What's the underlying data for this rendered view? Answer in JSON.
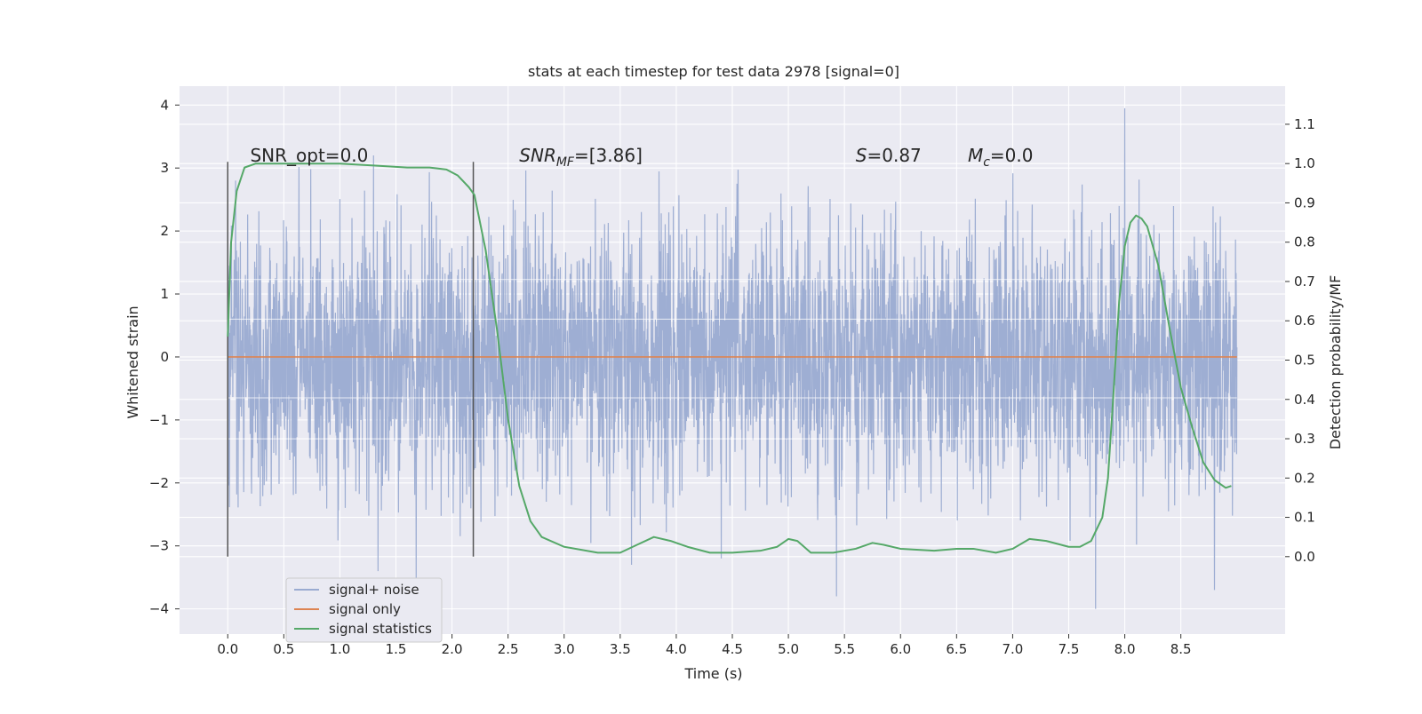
{
  "chart_data": {
    "type": "line",
    "title": "stats at each timestep for test data 2978 [signal=0]",
    "xlabel": "Time (s)",
    "ylabel": "Whitened strain",
    "y2label": "Detection probability/MF",
    "xlim": [
      -0.43,
      9.43
    ],
    "ylim": [
      -4.4,
      4.3
    ],
    "y2lim": [
      -0.197,
      1.197
    ],
    "xticks": [
      "0.0",
      "0.5",
      "1.0",
      "1.5",
      "2.0",
      "2.5",
      "3.0",
      "3.5",
      "4.0",
      "4.5",
      "5.0",
      "5.5",
      "6.0",
      "6.5",
      "7.0",
      "7.5",
      "8.0",
      "8.5"
    ],
    "yticks": [
      "4",
      "3",
      "2",
      "1",
      "0",
      "−1",
      "−2",
      "−3",
      "−4"
    ],
    "y2ticks": [
      "1.1",
      "1.0",
      "0.9",
      "0.8",
      "0.7",
      "0.6",
      "0.5",
      "0.4",
      "0.3",
      "0.2",
      "0.1",
      "0.0"
    ],
    "grid": true,
    "legend_position": "lower-left",
    "colors": {
      "background": "#eaeaf2",
      "grid": "#ffffff",
      "noise": "#9aabd1",
      "signal_only": "#dd8452",
      "statistics": "#55a868",
      "markers": "#555555"
    },
    "vertical_markers": [
      0.0,
      2.19
    ],
    "annotations": [
      {
        "text": "SNR_opt=0.0",
        "x": 0.2,
        "y2": 1.0
      },
      {
        "text": "SNR_MF=[3.86]",
        "x": 2.6,
        "y2": 1.0
      },
      {
        "text": "S=0.87",
        "x": 5.6,
        "y2": 1.0
      },
      {
        "text": "M_c=0.0",
        "x": 6.6,
        "y2": 1.0
      }
    ],
    "series": [
      {
        "name": "signal+ noise",
        "axis": "left",
        "style": "dense-noise",
        "x_range": [
          0.0,
          9.0
        ],
        "envelope_typical": [
          -1.3,
          1.3
        ],
        "extremes": [
          {
            "x": 0.07,
            "y": 2.8
          },
          {
            "x": 1.3,
            "y": 3.2
          },
          {
            "x": 1.34,
            "y": -3.4
          },
          {
            "x": 1.68,
            "y": -3.55
          },
          {
            "x": 3.6,
            "y": -3.3
          },
          {
            "x": 4.4,
            "y": -3.2
          },
          {
            "x": 5.43,
            "y": -3.8
          },
          {
            "x": 7.74,
            "y": -4.0
          },
          {
            "x": 8.0,
            "y": 3.95
          },
          {
            "x": 8.8,
            "y": -3.7
          }
        ]
      },
      {
        "name": "signal only",
        "axis": "left",
        "x": [
          0.0,
          9.0
        ],
        "y": [
          0.0,
          0.0
        ]
      },
      {
        "name": "signal statistics",
        "axis": "right",
        "x": [
          0.0,
          0.03,
          0.08,
          0.15,
          0.25,
          0.5,
          1.0,
          1.3,
          1.6,
          1.8,
          1.95,
          2.05,
          2.15,
          2.2,
          2.3,
          2.4,
          2.5,
          2.6,
          2.7,
          2.8,
          3.0,
          3.3,
          3.5,
          3.65,
          3.8,
          3.95,
          4.1,
          4.3,
          4.5,
          4.75,
          4.9,
          5.0,
          5.08,
          5.2,
          5.4,
          5.6,
          5.75,
          5.85,
          6.0,
          6.3,
          6.5,
          6.65,
          6.85,
          7.0,
          7.15,
          7.3,
          7.5,
          7.6,
          7.7,
          7.8,
          7.85,
          7.9,
          7.95,
          8.0,
          8.05,
          8.1,
          8.15,
          8.2,
          8.3,
          8.4,
          8.5,
          8.6,
          8.7,
          8.8,
          8.9,
          8.95
        ],
        "y": [
          0.56,
          0.8,
          0.93,
          0.99,
          1.0,
          1.0,
          1.0,
          0.995,
          0.99,
          0.99,
          0.985,
          0.97,
          0.94,
          0.92,
          0.78,
          0.58,
          0.35,
          0.18,
          0.09,
          0.05,
          0.025,
          0.01,
          0.01,
          0.03,
          0.05,
          0.04,
          0.025,
          0.01,
          0.01,
          0.015,
          0.025,
          0.045,
          0.04,
          0.01,
          0.01,
          0.02,
          0.035,
          0.03,
          0.02,
          0.015,
          0.02,
          0.02,
          0.01,
          0.02,
          0.045,
          0.04,
          0.025,
          0.025,
          0.04,
          0.1,
          0.2,
          0.42,
          0.65,
          0.79,
          0.85,
          0.868,
          0.86,
          0.84,
          0.74,
          0.58,
          0.43,
          0.33,
          0.24,
          0.195,
          0.175,
          0.18
        ]
      }
    ]
  }
}
